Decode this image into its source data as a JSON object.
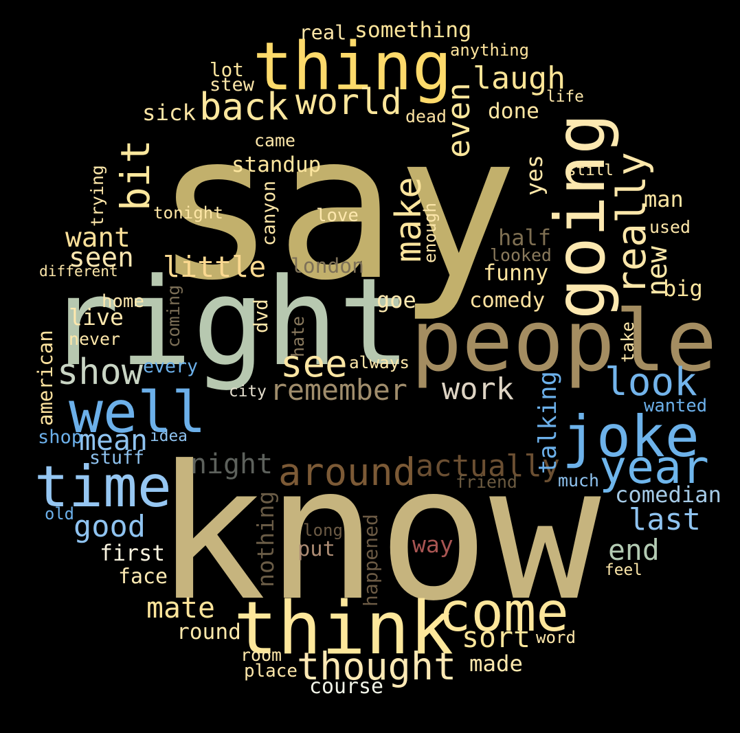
{
  "words": [
    {
      "text": "say",
      "color": "#c2b06c"
    },
    {
      "text": "know",
      "color": "#c6b47e"
    },
    {
      "text": "right",
      "color": "#b7c8b0"
    },
    {
      "text": "people",
      "color": "#a48d61"
    },
    {
      "text": "thing",
      "color": "#fdda6b"
    },
    {
      "text": "think",
      "color": "#fde79b"
    },
    {
      "text": "going",
      "color": "#fce8b0"
    },
    {
      "text": "joke",
      "color": "#6db2ea"
    },
    {
      "text": "time",
      "color": "#95c6f2"
    },
    {
      "text": "well",
      "color": "#6cb0ea"
    },
    {
      "text": "come",
      "color": "#fde69b"
    },
    {
      "text": "year",
      "color": "#6fb6ec"
    },
    {
      "text": "thought",
      "color": "#fde9b5"
    },
    {
      "text": "around",
      "color": "#7c5a36"
    },
    {
      "text": "actually",
      "color": "#6b4f32"
    },
    {
      "text": "bit",
      "color": "#fde89e"
    },
    {
      "text": "world",
      "color": "#fde69b"
    },
    {
      "text": "back",
      "color": "#fde79e"
    },
    {
      "text": "make",
      "color": "#fde59d"
    },
    {
      "text": "really",
      "color": "#fce7aa"
    },
    {
      "text": "even",
      "color": "#fde79c"
    },
    {
      "text": "look",
      "color": "#73b4eb"
    },
    {
      "text": "see",
      "color": "#fde6a3"
    },
    {
      "text": "show",
      "color": "#c9d5c4"
    },
    {
      "text": "laugh",
      "color": "#fde597"
    },
    {
      "text": "remember",
      "color": "#a08d6c"
    },
    {
      "text": "work",
      "color": "#ded4c4"
    },
    {
      "text": "little",
      "color": "#fcd990"
    },
    {
      "text": "good",
      "color": "#8fc3f0"
    },
    {
      "text": "night",
      "color": "#5d615c"
    },
    {
      "text": "want",
      "color": "#fde19a"
    },
    {
      "text": "mean",
      "color": "#8fc3f0"
    },
    {
      "text": "last",
      "color": "#8fc3f0"
    },
    {
      "text": "sort",
      "color": "#fde69b"
    },
    {
      "text": "mate",
      "color": "#fde59b"
    },
    {
      "text": "new",
      "color": "#fde8a8"
    },
    {
      "text": "seen",
      "color": "#fde7b1"
    },
    {
      "text": "comedian",
      "color": "#a5cae6"
    },
    {
      "text": "end",
      "color": "#b3cbb3"
    },
    {
      "text": "first",
      "color": "#f9f3df"
    },
    {
      "text": "course",
      "color": "#f1f4e8"
    },
    {
      "text": "funny",
      "color": "#fde59f"
    },
    {
      "text": "comedy",
      "color": "#fde2a0"
    },
    {
      "text": "nothing",
      "color": "#6a5c46"
    },
    {
      "text": "sick",
      "color": "#fde6a5"
    },
    {
      "text": "done",
      "color": "#fde6a3"
    },
    {
      "text": "london",
      "color": "#7e7158"
    },
    {
      "text": "something",
      "color": "#fde59b"
    },
    {
      "text": "standup",
      "color": "#fde69f"
    },
    {
      "text": "face",
      "color": "#fdeab3"
    },
    {
      "text": "made",
      "color": "#fde8ae"
    },
    {
      "text": "round",
      "color": "#fde8ab"
    },
    {
      "text": "stuff",
      "color": "#8fc3f0"
    },
    {
      "text": "lot",
      "color": "#fde69f"
    },
    {
      "text": "half",
      "color": "#7e6f52"
    },
    {
      "text": "put",
      "color": "#ad8c74"
    },
    {
      "text": "big",
      "color": "#fde69f"
    },
    {
      "text": "man",
      "color": "#fde6a3"
    },
    {
      "text": "way",
      "color": "#a85552"
    },
    {
      "text": "live",
      "color": "#fde8ae"
    },
    {
      "text": "goe",
      "color": "#fde9b0"
    },
    {
      "text": "talking",
      "color": "#6cb0ea"
    },
    {
      "text": "american",
      "color": "#fde29f"
    },
    {
      "text": "yes",
      "color": "#fde7a9"
    },
    {
      "text": "canyon",
      "color": "#fde7a8"
    },
    {
      "text": "happened",
      "color": "#6b5a44"
    },
    {
      "text": "tonight",
      "color": "#fde6a5"
    },
    {
      "text": "love",
      "color": "#fde7ad"
    },
    {
      "text": "anything",
      "color": "#fde39d"
    },
    {
      "text": "stew",
      "color": "#fde7aa"
    },
    {
      "text": "life",
      "color": "#fde7aa"
    },
    {
      "text": "still",
      "color": "#fde7aa"
    },
    {
      "text": "used",
      "color": "#fde7aa"
    },
    {
      "text": "real",
      "color": "#fde7aa"
    },
    {
      "text": "dead",
      "color": "#fde3a3"
    },
    {
      "text": "came",
      "color": "#fde7aa"
    },
    {
      "text": "trying",
      "color": "#fde7aa"
    },
    {
      "text": "enough",
      "color": "#fde7aa"
    },
    {
      "text": "different",
      "color": "#fde7aa"
    },
    {
      "text": "looked",
      "color": "#8a7a5c"
    },
    {
      "text": "home",
      "color": "#fde8ae"
    },
    {
      "text": "coming",
      "color": "#7b6e56"
    },
    {
      "text": "dvd",
      "color": "#fde7aa"
    },
    {
      "text": "never",
      "color": "#fde7aa"
    },
    {
      "text": "hate",
      "color": "#8a7a5e"
    },
    {
      "text": "take",
      "color": "#fde7aa"
    },
    {
      "text": "every",
      "color": "#6cb0ea"
    },
    {
      "text": "always",
      "color": "#fde7aa"
    },
    {
      "text": "city",
      "color": "#e6e0cf"
    },
    {
      "text": "wanted",
      "color": "#6cb0ea"
    },
    {
      "text": "shop",
      "color": "#6cb0ea"
    },
    {
      "text": "idea",
      "color": "#8fc3f0"
    },
    {
      "text": "friend",
      "color": "#6b5a40"
    },
    {
      "text": "much",
      "color": "#8fc3f0"
    },
    {
      "text": "old",
      "color": "#6cb0ea"
    },
    {
      "text": "long",
      "color": "#6b5a44"
    },
    {
      "text": "feel",
      "color": "#fde7aa"
    },
    {
      "text": "word",
      "color": "#fde7aa"
    },
    {
      "text": "room",
      "color": "#fde7aa"
    },
    {
      "text": "place",
      "color": "#fde7aa"
    }
  ]
}
